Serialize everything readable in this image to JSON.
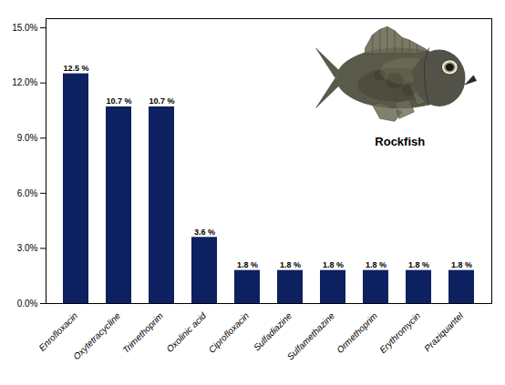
{
  "chart_data": {
    "type": "bar",
    "categories": [
      "Enrofloxacin",
      "Oxytetracycline",
      "Trimethoprim",
      "Oxolinic acid",
      "Ciprofloxacin",
      "Sulfadiazine",
      "Sulfamethazine",
      "Ormethoprim",
      "Erythromycin",
      "Praziquantel"
    ],
    "values": [
      12.5,
      10.7,
      10.7,
      3.6,
      1.8,
      1.8,
      1.8,
      1.8,
      1.8,
      1.8
    ],
    "value_labels": [
      "12.5 %",
      "10.7 %",
      "10.7 %",
      "3.6 %",
      "1.8 %",
      "1.8 %",
      "1.8 %",
      "1.8 %",
      "1.8 %",
      "1.8 %"
    ],
    "data_labels": true,
    "color": "#0d2060",
    "ylim": [
      0,
      15.5
    ],
    "yticks": [
      {
        "value": 0.0,
        "label": "0.0%"
      },
      {
        "value": 3.0,
        "label": "3.0%"
      },
      {
        "value": 6.0,
        "label": "6.0%"
      },
      {
        "value": 9.0,
        "label": "9.0%"
      },
      {
        "value": 12.0,
        "label": "12.0%"
      },
      {
        "value": 15.0,
        "label": "15.0%"
      }
    ],
    "grid": false,
    "annotations": [
      "Rockfish"
    ]
  }
}
